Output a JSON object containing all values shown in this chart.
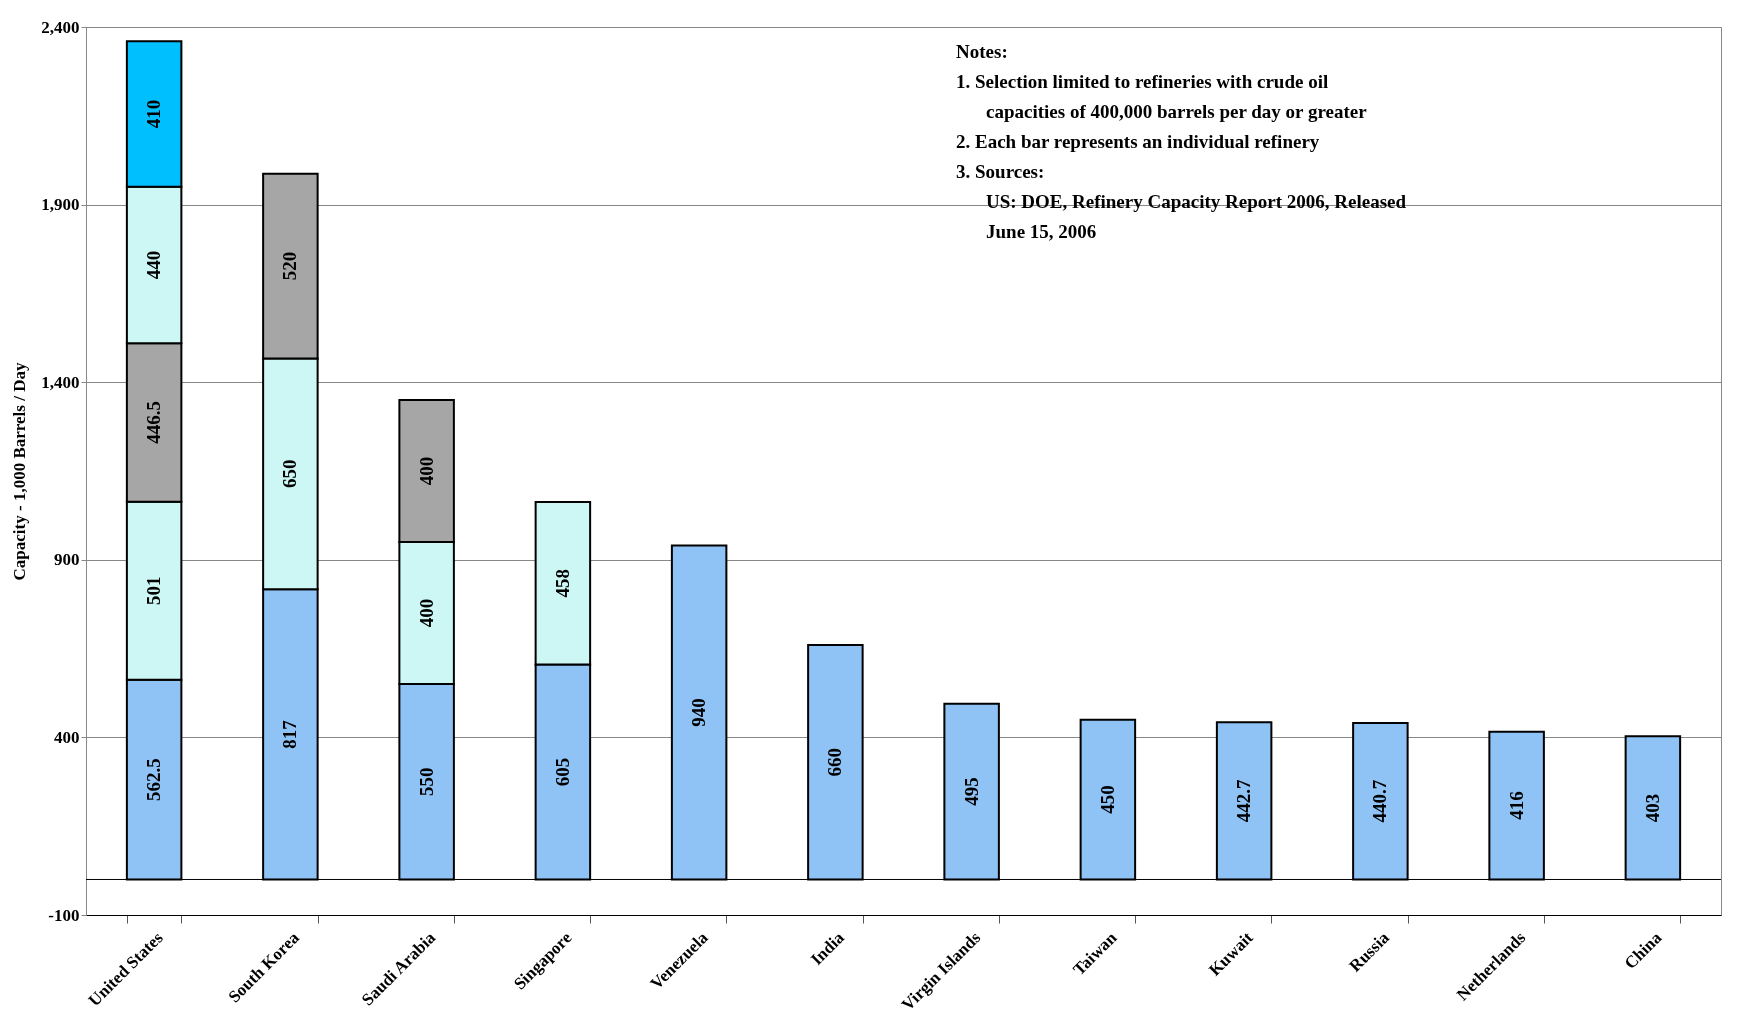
{
  "chart_data": {
    "type": "bar",
    "stacked": true,
    "data_labels": true,
    "grid": "y",
    "ylabel": "Capacity - 1,000 Barrels / Day",
    "categories": [
      "United States",
      "South Korea",
      "Saudi Arabia",
      "Singapore",
      "Venezuela",
      "India",
      "Virgin Islands",
      "Taiwan",
      "Kuwait",
      "Russia",
      "Netherlands",
      "China"
    ],
    "series": [
      {
        "color": "#8fc3f5",
        "values": [
          562.5,
          817,
          550,
          605,
          940,
          660,
          495,
          450,
          442.7,
          440.7,
          416,
          403
        ]
      },
      {
        "color": "#ccf7f5",
        "values": [
          501,
          650,
          400,
          458,
          null,
          null,
          null,
          null,
          null,
          null,
          null,
          null
        ]
      },
      {
        "color": "#a6a6a6",
        "values": [
          446.5,
          520,
          400,
          null,
          null,
          null,
          null,
          null,
          null,
          null,
          null,
          null
        ]
      },
      {
        "color": "#ccf7f5",
        "values": [
          440,
          null,
          null,
          null,
          null,
          null,
          null,
          null,
          null,
          null,
          null,
          null
        ]
      },
      {
        "color": "#00bfff",
        "values": [
          410,
          null,
          null,
          null,
          null,
          null,
          null,
          null,
          null,
          null,
          null,
          null
        ]
      }
    ],
    "ylim": [
      -100,
      2400
    ],
    "yticks": [
      -100,
      400,
      900,
      {
        "value": 1400,
        "label": "1,400"
      },
      {
        "value": 1900,
        "label": "1,900"
      },
      {
        "value": 2400,
        "label": "2,400"
      }
    ],
    "ref_lines": [
      {
        "axis": "y",
        "value": 0
      }
    ],
    "annotations": [
      "Notes:",
      "1.  Selection limited to refineries with crude oil capacities of 400,000 barrels per day or greater",
      "2.  Each bar represents an individual refinery",
      "3.  Sources:",
      "US: DOE, Refinery Capacity Report 2006, Released June 15, 2006"
    ]
  }
}
